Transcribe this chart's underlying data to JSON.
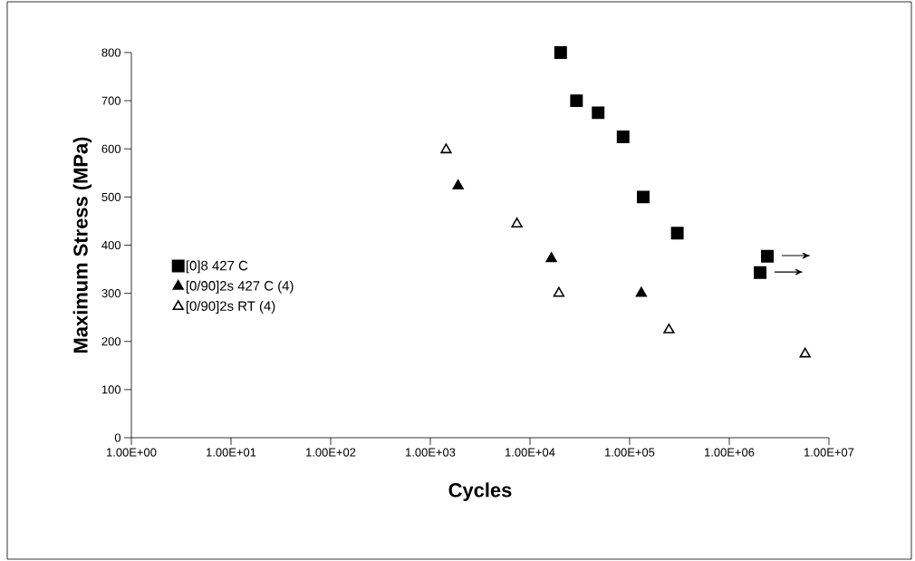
{
  "chart_data": {
    "type": "scatter",
    "xlabel": "Cycles",
    "ylabel": "Maximum Stress (MPa)",
    "log": "x",
    "xlim": [
      1,
      10000000
    ],
    "ylim": [
      0,
      800
    ],
    "xticks": [
      {
        "value": 1,
        "label": "1.00E+00"
      },
      {
        "value": 10,
        "label": "1.00E+01"
      },
      {
        "value": 100,
        "label": "1.00E+02"
      },
      {
        "value": 1000,
        "label": "1.00E+03"
      },
      {
        "value": 10000,
        "label": "1.00E+04"
      },
      {
        "value": 100000,
        "label": "1.00E+05"
      },
      {
        "value": 1000000,
        "label": "1.00E+06"
      },
      {
        "value": 10000000,
        "label": "1.00E+07"
      }
    ],
    "yticks": [
      0,
      100,
      200,
      300,
      400,
      500,
      600,
      700,
      800
    ],
    "grid": false,
    "legend": "left",
    "series": [
      {
        "name": "[0]8 427 C",
        "color": "#000000",
        "marker": "square",
        "x": [
          20300,
          29300,
          48300,
          86000,
          137000,
          301000,
          2410000,
          2040000
        ],
        "values": [
          800,
          700,
          675,
          625,
          500,
          425,
          377,
          343
        ]
      },
      {
        "name": "[0/90]2s 427 C (4)",
        "color": "#000000",
        "marker": "triangle",
        "x": [
          1900,
          16400,
          131000
        ],
        "values": [
          523,
          372,
          300
        ]
      },
      {
        "name": "[0/90]2s RT (4)",
        "color": "#ffffff",
        "marker": "triangle",
        "x": [
          1440,
          1900,
          7400,
          19500,
          248000,
          5770000
        ],
        "values": [
          598,
          null,
          444,
          300,
          224,
          174
        ]
      }
    ],
    "annotations": [
      {
        "text": "→",
        "x": 2410000,
        "y": 377
      },
      {
        "text": "→",
        "x": 2040000,
        "y": 343
      }
    ]
  }
}
